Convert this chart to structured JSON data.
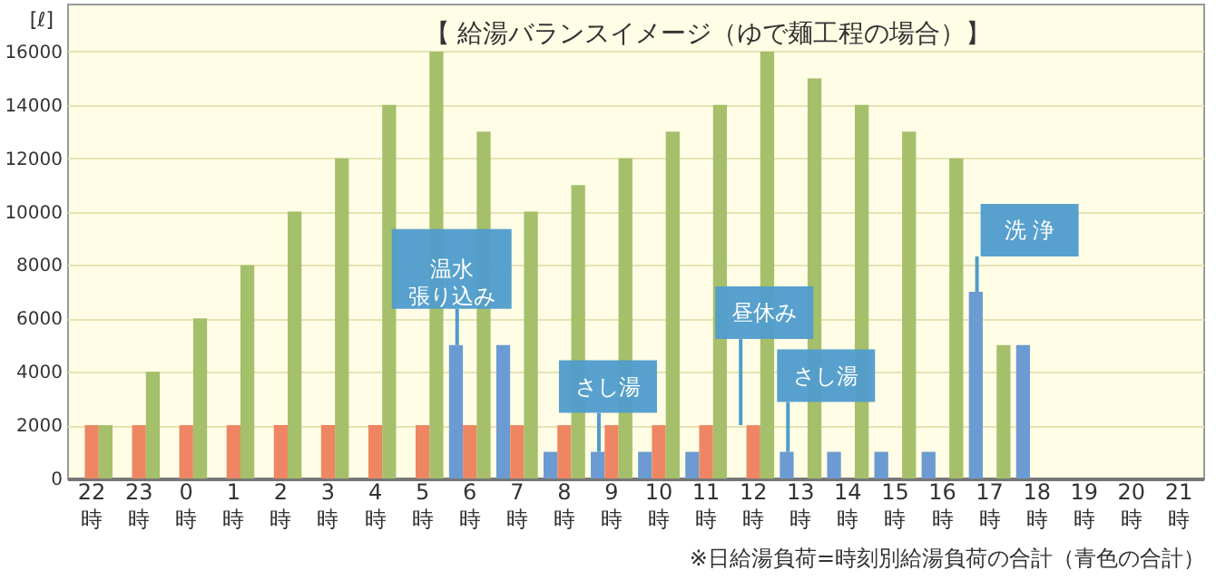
{
  "chart_data": {
    "type": "bar",
    "title": "【 給湯バランスイメージ（ゆで麺工程の場合）】",
    "ylabel": "[ℓ]",
    "categories": [
      "22時",
      "23時",
      "0時",
      "1時",
      "2時",
      "3時",
      "4時",
      "5時",
      "6時",
      "7時",
      "8時",
      "9時",
      "10時",
      "11時",
      "12時",
      "13時",
      "14時",
      "15時",
      "16時",
      "17時",
      "18時",
      "19時",
      "20時",
      "21時"
    ],
    "series": [
      {
        "color": "#6b9bd2",
        "values": [
          null,
          null,
          null,
          null,
          null,
          null,
          null,
          null,
          5000,
          5000,
          1000,
          1000,
          1000,
          1000,
          null,
          1000,
          1000,
          1000,
          1000,
          7000,
          5000,
          null,
          null,
          null
        ]
      },
      {
        "color": "#ee8663",
        "values": [
          2000,
          2000,
          2000,
          2000,
          2000,
          2000,
          2000,
          2000,
          2000,
          2000,
          2000,
          2000,
          2000,
          2000,
          2000,
          null,
          null,
          null,
          null,
          null,
          null,
          null,
          null,
          null
        ]
      },
      {
        "color": "#a5bf6b",
        "values": [
          2000,
          4000,
          6000,
          8000,
          10000,
          12000,
          14000,
          16000,
          13000,
          10000,
          11000,
          12000,
          13000,
          14000,
          16000,
          15000,
          14000,
          13000,
          12000,
          5000,
          null,
          null,
          null,
          null
        ]
      }
    ],
    "ylim": [
      0,
      17800
    ],
    "yticks": [
      0,
      2000,
      4000,
      6000,
      8000,
      10000,
      12000,
      14000,
      16000
    ],
    "grid": "y",
    "legend": false,
    "annotations": [
      {
        "text": "温水張り込み",
        "x": "6時",
        "y": 5000
      },
      {
        "text": "さし湯",
        "x": "9時",
        "y": 1000
      },
      {
        "text": "昼休み",
        "x": "12時",
        "y": 2000
      },
      {
        "text": "さし湯",
        "x": "13時",
        "y": 1000
      },
      {
        "text": "洗 浄",
        "x": "17時",
        "y": 7000
      },
      "※日給湯負荷=時刻別給湯負荷の合計（青色の合計）"
    ]
  }
}
